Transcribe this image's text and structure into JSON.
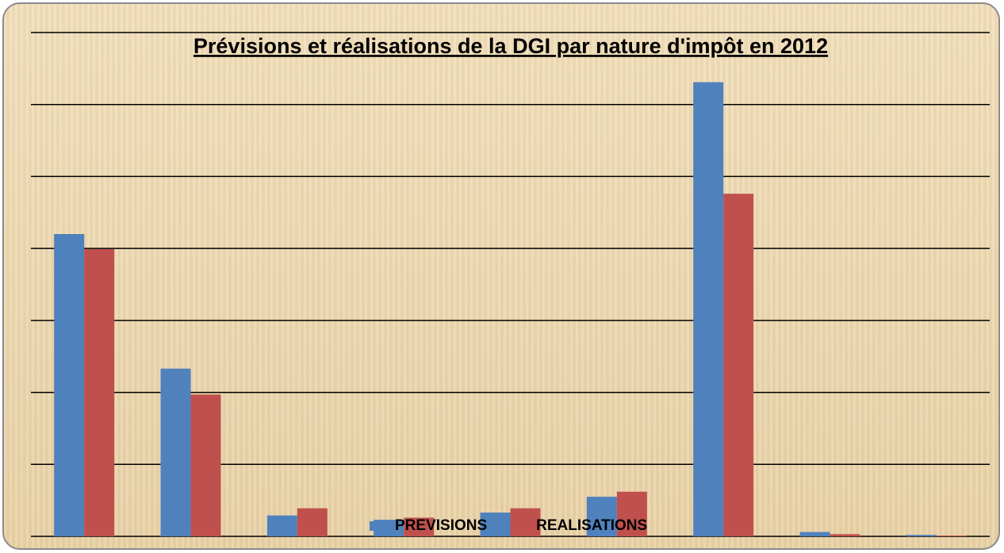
{
  "chart_data": {
    "type": "bar",
    "title": "Prévisions et réalisations de la DGI par nature d'impôt en 2012",
    "categories": [
      null,
      null,
      null,
      null,
      null,
      null,
      null,
      null,
      null
    ],
    "series": [
      {
        "name": "PREVISIONS",
        "color": "#4f81bd",
        "values": [
          4.2,
          2.33,
          0.29,
          0.23,
          0.33,
          0.55,
          6.31,
          0.06,
          0.02
        ]
      },
      {
        "name": "REALISATIONS",
        "color": "#c0504d",
        "values": [
          3.99,
          1.97,
          0.39,
          0.26,
          0.39,
          0.62,
          4.76,
          0.03,
          0.01
        ]
      }
    ],
    "ylim": [
      0,
      7
    ],
    "yticks": [
      0,
      1,
      2,
      3,
      4,
      5,
      6,
      7
    ],
    "grid": true,
    "legend": "bottom"
  }
}
